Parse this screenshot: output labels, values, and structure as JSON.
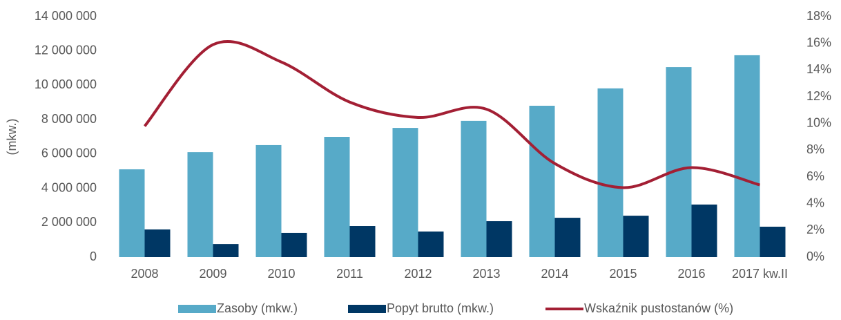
{
  "chart_data": {
    "type": "bar_line",
    "y_label": "(mkw.)",
    "categories": [
      "2008",
      "2009",
      "2010",
      "2011",
      "2012",
      "2013",
      "2014",
      "2015",
      "2016",
      "2017 kw.II"
    ],
    "series": [
      {
        "name": "Zasoby (mkw.)",
        "type": "bar",
        "color": "#57aac8",
        "values": [
          5110000,
          6110000,
          6520000,
          7000000,
          7520000,
          7930000,
          8810000,
          9820000,
          11060000,
          11750000
        ]
      },
      {
        "name": "Popyt brutto (mkw.)",
        "type": "bar",
        "color": "#003764",
        "values": [
          1610000,
          760000,
          1410000,
          1810000,
          1490000,
          2090000,
          2290000,
          2410000,
          3060000,
          1770000
        ]
      },
      {
        "name": "Wskaźnik pustostanów (%)",
        "type": "line",
        "axis": "y2",
        "color": "#a31f34",
        "values": [
          9.8,
          15.9,
          14.6,
          11.6,
          10.45,
          11.07,
          7.0,
          5.2,
          6.7,
          5.4
        ]
      }
    ],
    "ylim": [
      0,
      14000000
    ],
    "yticks": [
      {
        "value": 0,
        "label": "0"
      },
      {
        "value": 2000000,
        "label": "2 000 000"
      },
      {
        "value": 4000000,
        "label": "4 000 000"
      },
      {
        "value": 6000000,
        "label": "6 000 000"
      },
      {
        "value": 8000000,
        "label": "8 000 000"
      },
      {
        "value": 10000000,
        "label": "10 000 000"
      },
      {
        "value": 12000000,
        "label": "12 000 000"
      },
      {
        "value": 14000000,
        "label": "14 000 000"
      }
    ],
    "y2lim": [
      0,
      18
    ],
    "y2ticks": [
      {
        "value": 0,
        "label": "0%"
      },
      {
        "value": 2,
        "label": "2%"
      },
      {
        "value": 4,
        "label": "4%"
      },
      {
        "value": 6,
        "label": "6%"
      },
      {
        "value": 8,
        "label": "8%"
      },
      {
        "value": 10,
        "label": "10%"
      },
      {
        "value": 12,
        "label": "12%"
      },
      {
        "value": 14,
        "label": "14%"
      },
      {
        "value": 16,
        "label": "16%"
      },
      {
        "value": 18,
        "label": "18%"
      }
    ],
    "legend": "bottom"
  }
}
